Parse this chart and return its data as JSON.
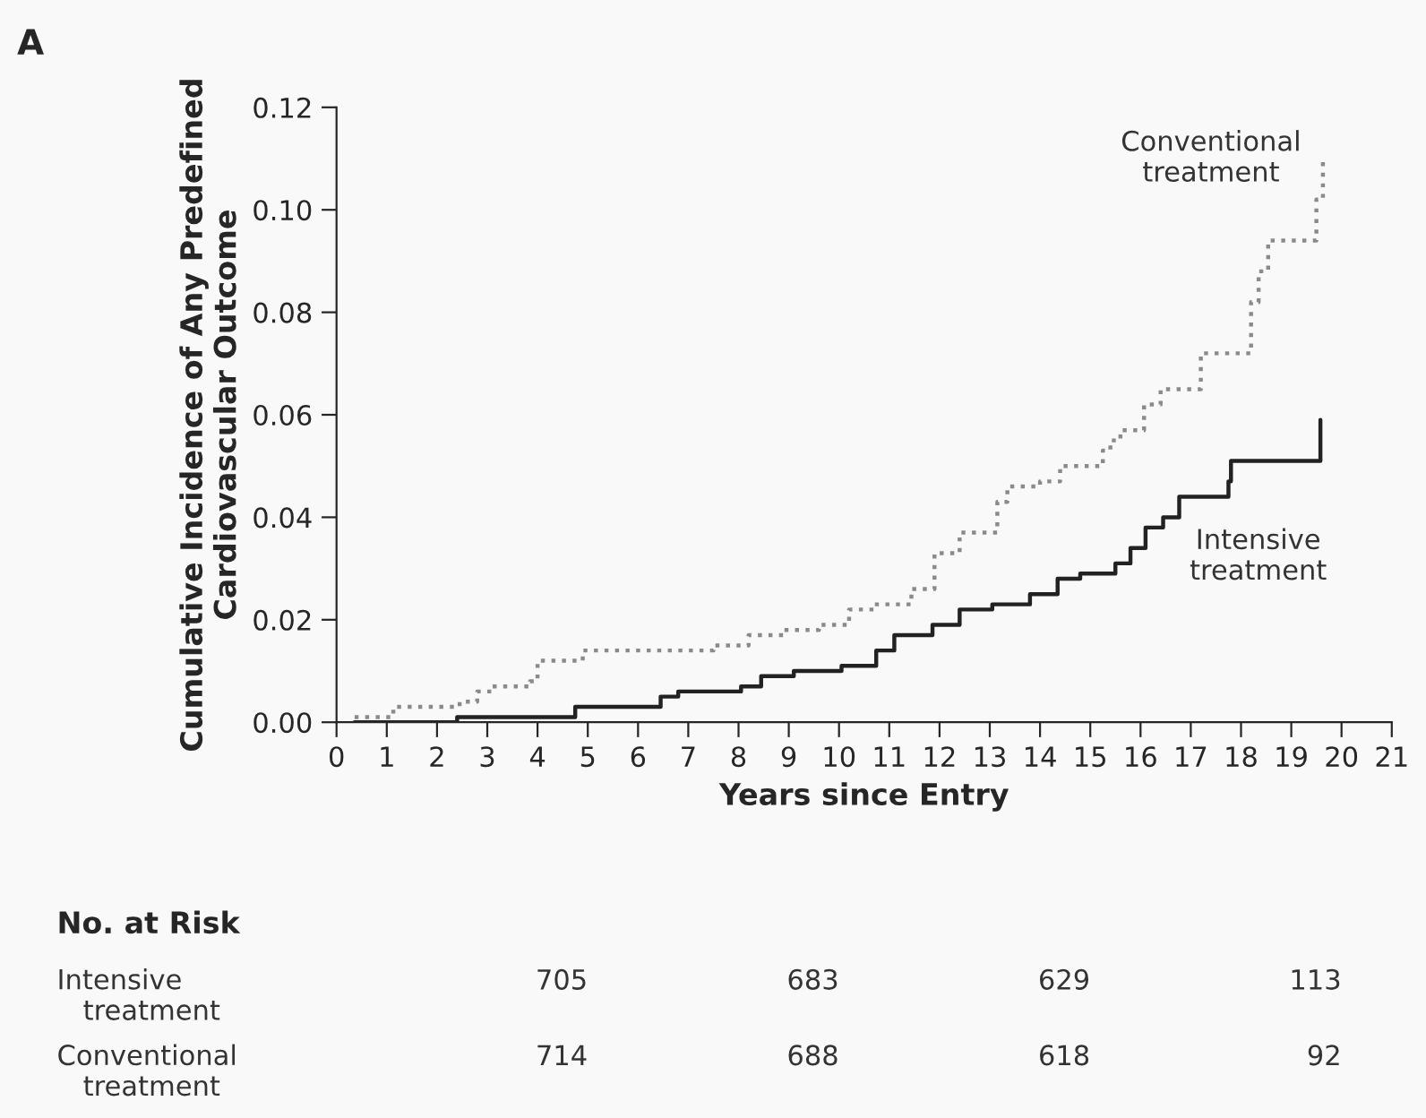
{
  "chart_data": [
    {
      "type": "step",
      "annotations": [
        "A"
      ],
      "xlabel": "Years since Entry",
      "ylabel": "Cumulative Incidence of Any Predefined\nCardiovascular Outcome",
      "xlim": [
        0,
        21
      ],
      "xticks": [
        0,
        1,
        2,
        3,
        4,
        5,
        6,
        7,
        8,
        9,
        10,
        11,
        12,
        13,
        14,
        15,
        16,
        17,
        18,
        19,
        20,
        21
      ],
      "ylim": [
        0,
        0.12
      ],
      "yticks": [
        {
          "value": 0,
          "label": "0.00"
        },
        {
          "value": 0.02,
          "label": "0.02"
        },
        {
          "value": 0.04,
          "label": "0.04"
        },
        {
          "value": 0.06,
          "label": "0.06"
        },
        {
          "value": 0.08,
          "label": "0.08"
        },
        {
          "value": 0.1,
          "label": "0.10"
        },
        {
          "value": 0.12,
          "label": "0.12"
        }
      ],
      "grid": false,
      "legend": false,
      "series": [
        {
          "name": "Conventional treatment",
          "color": "#8a8a8a",
          "line_style": "dotted",
          "x": [
            0.36,
            1.13,
            2.45,
            2.8,
            3.1,
            3.85,
            4.0,
            4.9,
            7.5,
            8.2,
            8.9,
            9.6,
            10.2,
            10.7,
            11.44,
            11.9,
            12.4,
            13.15,
            13.35,
            14.0,
            14.4,
            15.25,
            15.4,
            15.6,
            16.07,
            16.4,
            17.2,
            18.2,
            18.35,
            18.54,
            19.5,
            19.63
          ],
          "values": [
            0.001,
            0.003,
            0.004,
            0.006,
            0.007,
            0.008,
            0.012,
            0.014,
            0.015,
            0.017,
            0.018,
            0.019,
            0.022,
            0.023,
            0.026,
            0.033,
            0.037,
            0.043,
            0.046,
            0.047,
            0.05,
            0.053,
            0.055,
            0.057,
            0.062,
            0.065,
            0.072,
            0.082,
            0.088,
            0.094,
            0.102,
            0.11
          ]
        },
        {
          "name": "Intensive treatment",
          "color": "#222222",
          "line_style": "solid",
          "x": [
            0.36,
            2.4,
            4.75,
            6.45,
            6.8,
            8.05,
            8.45,
            9.1,
            10.05,
            10.74,
            11.1,
            11.86,
            12.4,
            13.05,
            13.8,
            14.35,
            14.8,
            15.5,
            15.8,
            16.1,
            16.45,
            16.77,
            17.75,
            17.8,
            19.58
          ],
          "values": [
            0,
            0.001,
            0.003,
            0.005,
            0.006,
            0.007,
            0.009,
            0.01,
            0.011,
            0.014,
            0.017,
            0.019,
            0.022,
            0.023,
            0.025,
            0.028,
            0.029,
            0.031,
            0.034,
            0.038,
            0.04,
            0.044,
            0.047,
            0.051,
            0.059
          ]
        }
      ]
    },
    {
      "type": "other",
      "title": "No. at Risk",
      "annotations": [
        "Intensive\n   treatment",
        "705",
        "683",
        "629",
        "113",
        "Conventional\n   treatment",
        "714",
        "688",
        "618",
        "92"
      ]
    }
  ]
}
